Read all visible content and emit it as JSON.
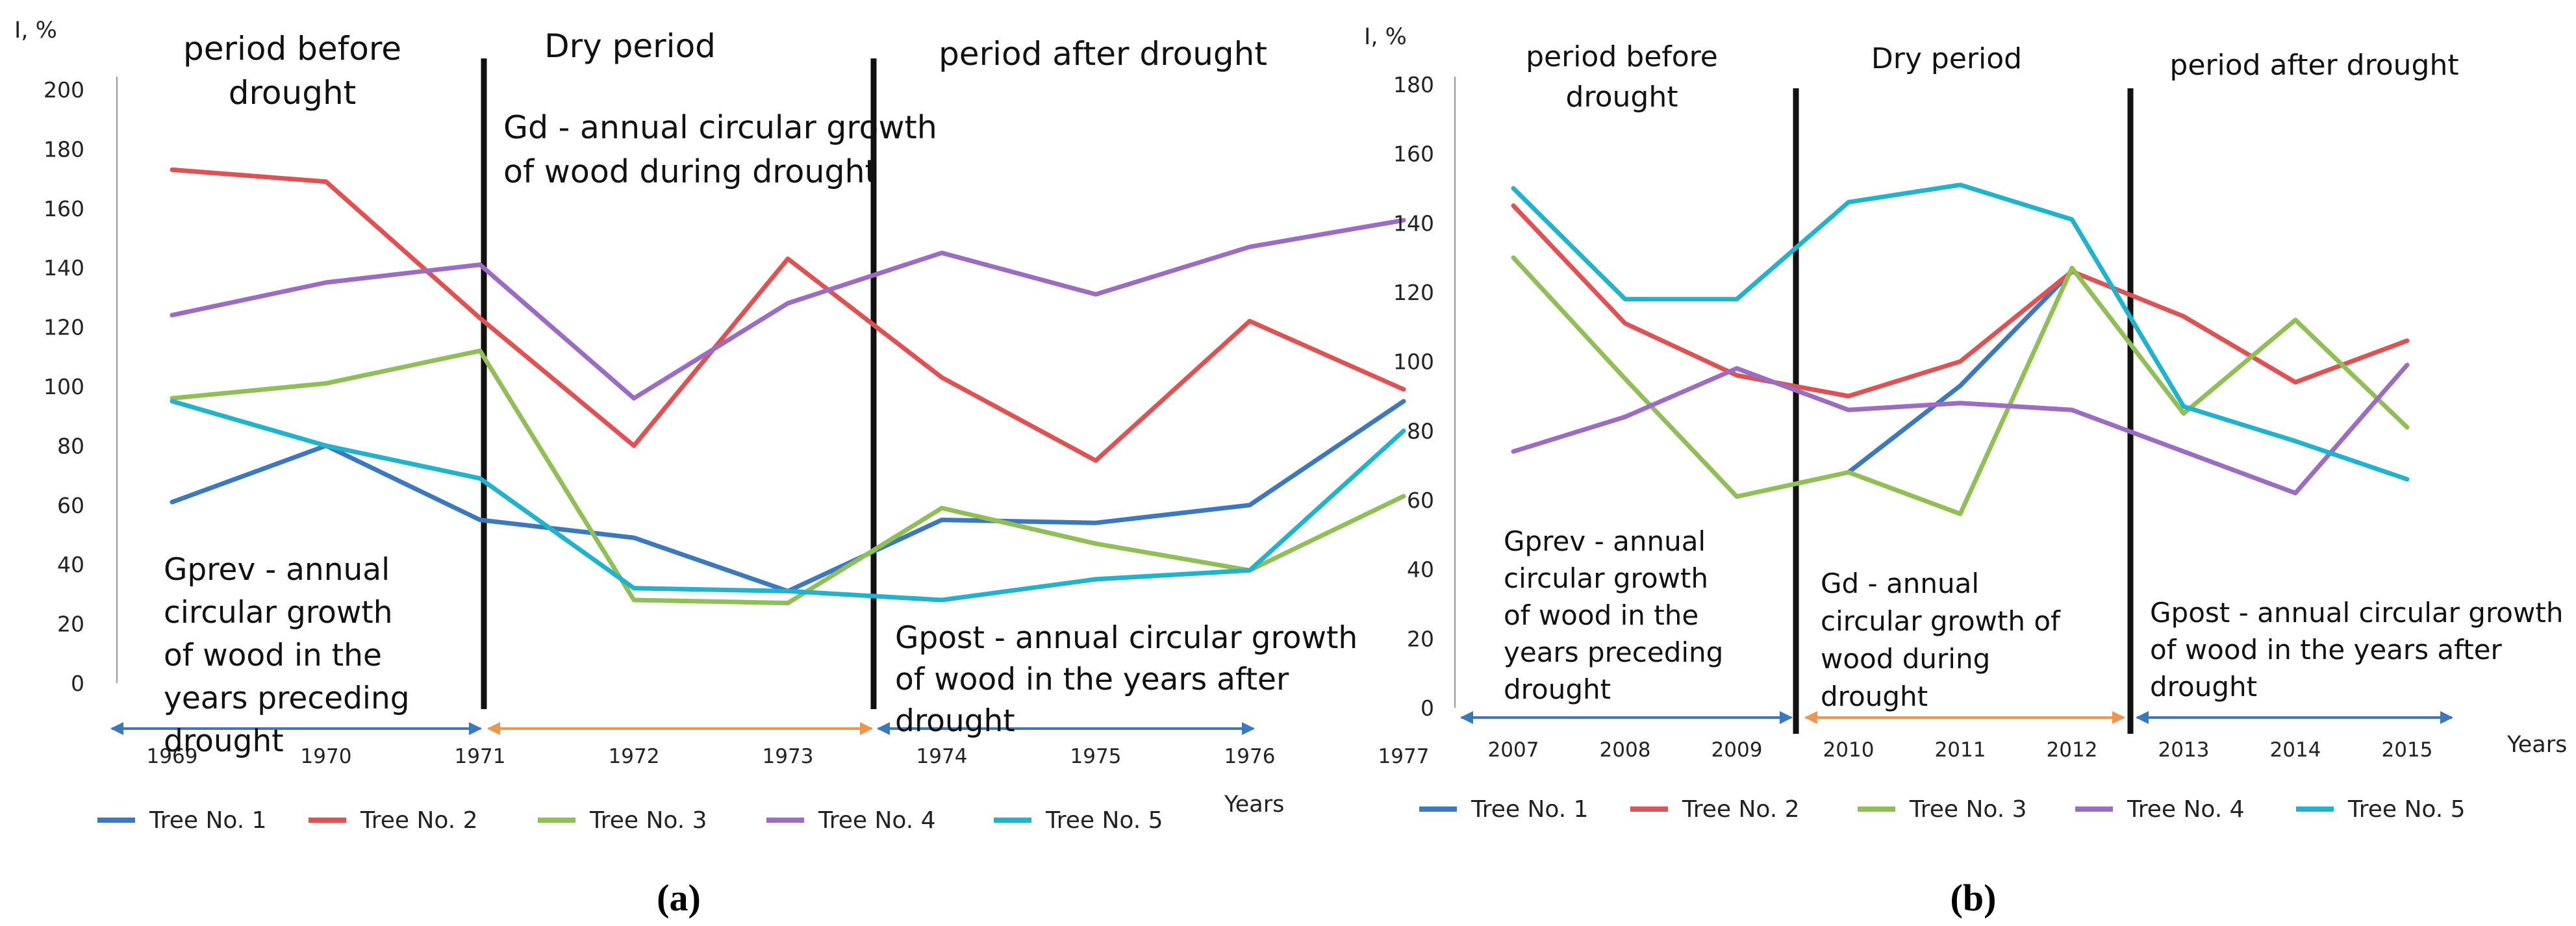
{
  "chart_data": [
    {
      "id": "a",
      "type": "line",
      "caption": "(a)",
      "ylabel": "I, %",
      "xlabel": "Years",
      "ylim": [
        0,
        200
      ],
      "yticks": [
        "0",
        "20",
        "40",
        "60",
        "80",
        "100",
        "120",
        "140",
        "160",
        "180",
        "200"
      ],
      "categories": [
        "1969",
        "1970",
        "1971",
        "1972",
        "1973",
        "1974",
        "1975",
        "1976",
        "1977"
      ],
      "series": [
        {
          "name": "Tree No. 1",
          "color": "#3a78c2",
          "values": [
            61,
            80,
            55,
            49,
            31,
            55,
            54,
            60,
            95
          ]
        },
        {
          "name": "Tree No. 2",
          "color": "#e05252",
          "values": [
            173,
            169,
            123,
            80,
            143,
            103,
            75,
            122,
            99
          ]
        },
        {
          "name": "Tree No. 3",
          "color": "#8fbf55",
          "values": [
            96,
            101,
            112,
            28,
            27,
            59,
            47,
            38,
            63
          ]
        },
        {
          "name": "Tree No. 4",
          "color": "#9b6bc6",
          "values": [
            124,
            135,
            141,
            96,
            128,
            145,
            131,
            147,
            156
          ]
        },
        {
          "name": "Tree No. 5",
          "color": "#1fb3cf",
          "values": [
            95,
            80,
            69,
            32,
            31,
            28,
            35,
            38,
            85
          ]
        }
      ],
      "periods": [
        "period before drought",
        "Dry period",
        "period after drought"
      ],
      "annotations": {
        "gd": "Gd - annual circular growth of wood during drought",
        "gprev": "Gprev - annual circular growth of wood in the years preceding drought",
        "gpost": "Gpost - annual circular growth of wood in the years after drought"
      }
    },
    {
      "id": "b",
      "type": "line",
      "caption": "(b)",
      "ylabel": "I, %",
      "xlabel": "Years",
      "ylim": [
        0,
        180
      ],
      "yticks": [
        "0",
        "20",
        "40",
        "60",
        "80",
        "100",
        "120",
        "140",
        "160",
        "180"
      ],
      "categories": [
        "2007",
        "2008",
        "2009",
        "2010",
        "2011",
        "2012",
        "2013",
        "2014",
        "2015"
      ],
      "series": [
        {
          "name": "Tree No. 1",
          "color": "#3a78c2",
          "values": [
            null,
            null,
            null,
            68,
            93,
            126,
            null,
            null,
            null
          ]
        },
        {
          "name": "Tree No. 2",
          "color": "#e05252",
          "values": [
            145,
            111,
            96,
            90,
            100,
            126,
            113,
            94,
            106
          ]
        },
        {
          "name": "Tree No. 3",
          "color": "#8fbf55",
          "values": [
            130,
            95,
            61,
            68,
            56,
            127,
            85,
            112,
            81
          ]
        },
        {
          "name": "Tree No. 4",
          "color": "#9b6bc6",
          "values": [
            74,
            84,
            98,
            86,
            88,
            86,
            74,
            62,
            99
          ]
        },
        {
          "name": "Tree No. 5",
          "color": "#1fb3cf",
          "values": [
            150,
            118,
            118,
            146,
            151,
            141,
            87,
            77,
            66
          ]
        }
      ],
      "periods": [
        "period before drought",
        "Dry period",
        "period after drought"
      ],
      "annotations": {
        "gd": "Gd - annual circular growth of wood during drought",
        "gprev": "Gprev - annual circular growth of wood in the years preceding drought",
        "gpost": "Gpost - annual circular growth of wood in the years after drought"
      }
    }
  ]
}
